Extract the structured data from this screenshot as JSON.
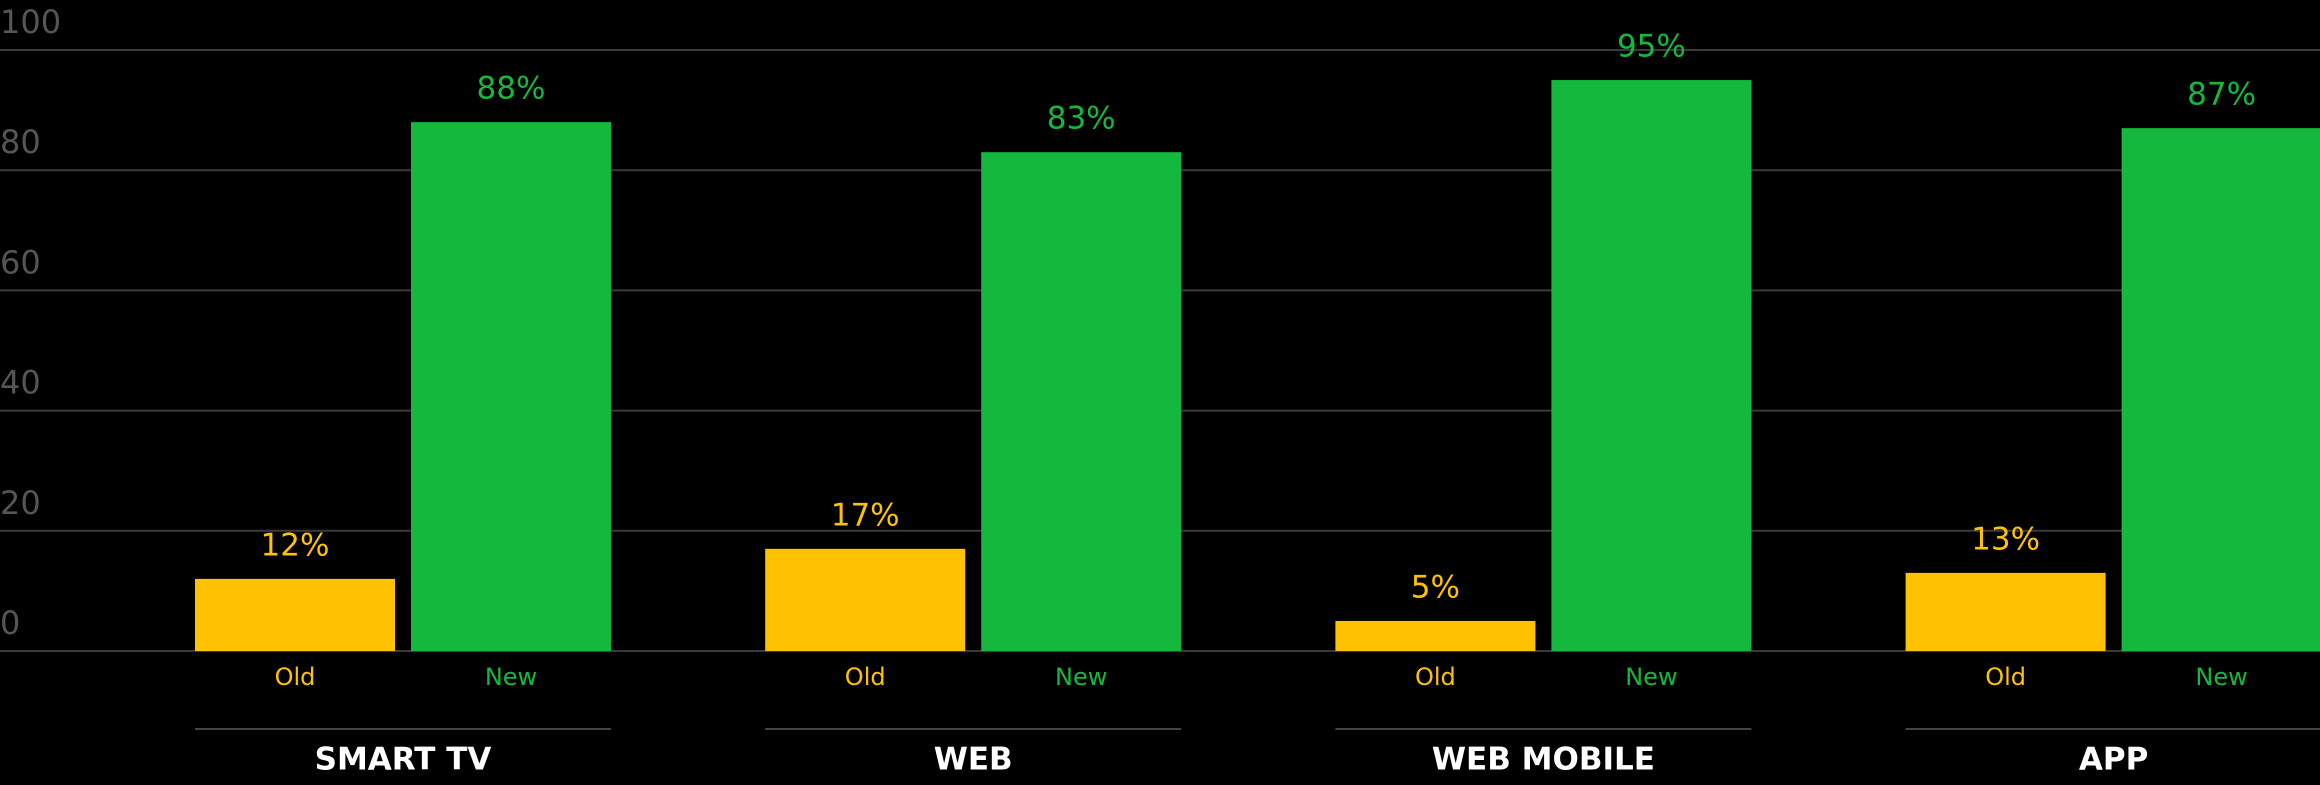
{
  "chart_data": {
    "type": "bar",
    "categories": [
      "SMART TV",
      "WEB",
      "WEB MOBILE",
      "APP"
    ],
    "series": [
      {
        "name": "Old",
        "color": "#ffc200",
        "values": [
          12,
          17,
          5,
          13
        ],
        "value_labels": [
          "12%",
          "17%",
          "5%",
          "13%"
        ]
      },
      {
        "name": "New",
        "color": "#14b83c",
        "values": [
          88,
          83,
          95,
          87
        ],
        "value_labels": [
          "88%",
          "83%",
          "95%",
          "87%"
        ]
      }
    ],
    "ylim": [
      0,
      100
    ],
    "yticks": [
      0,
      20,
      40,
      60,
      80,
      100
    ],
    "grid": true
  }
}
